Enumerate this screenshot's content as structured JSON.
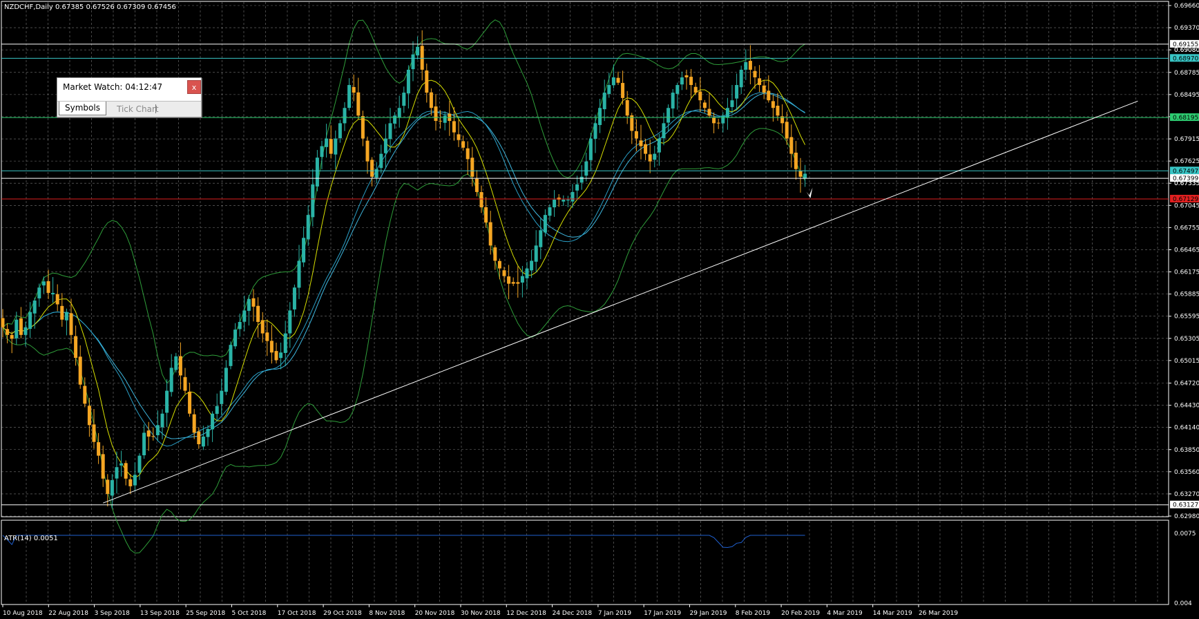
{
  "header": {
    "symbol_info": "NZDCHF,Daily  0.67385 0.67526 0.67309 0.67456"
  },
  "atr": {
    "label": "ATR(14) 0.0051"
  },
  "market_watch": {
    "title": "Market Watch: 04:12:47",
    "close_label": "x",
    "tabs": [
      {
        "label": "Symbols"
      },
      {
        "label": "Tick Chart"
      }
    ]
  },
  "colors": {
    "background": "#000000",
    "grid": "#c8c8c8",
    "axis": "#ffffff",
    "bull": "#2ab3a6",
    "bear": "#f5a623",
    "ma_fast": "#d8e000",
    "ma_slow": "#3fb8e0",
    "bands": "#2f9e3a",
    "atr": "#2060d0",
    "level_cyan": "#39c6c6",
    "level_green": "#2ecc71",
    "level_red": "#e02020",
    "level_white": "#ffffff",
    "trendline": "#ffffff"
  },
  "chart_data": {
    "type": "candlestick",
    "symbol": "NZDCHF",
    "timeframe": "Daily",
    "ylim": [
      0.6298,
      0.6966
    ],
    "price_ticks": [
      "0.69660",
      "0.69370",
      "0.69080",
      "0.68785",
      "0.68495",
      "0.68205",
      "0.67915",
      "0.67625",
      "0.67335",
      "0.67045",
      "0.66755",
      "0.66465",
      "0.66175",
      "0.65885",
      "0.65595",
      "0.65305",
      "0.65015",
      "0.64720",
      "0.64430",
      "0.64140",
      "0.63850",
      "0.63560",
      "0.63270",
      "0.62980"
    ],
    "date_ticks": [
      "10 Aug 2018",
      "22 Aug 2018",
      "3 Sep 2018",
      "13 Sep 2018",
      "25 Sep 2018",
      "5 Oct 2018",
      "17 Oct 2018",
      "29 Oct 2018",
      "8 Nov 2018",
      "20 Nov 2018",
      "30 Nov 2018",
      "12 Dec 2018",
      "24 Dec 2018",
      "7 Jan 2019",
      "17 Jan 2019",
      "29 Jan 2019",
      "8 Feb 2019",
      "20 Feb 2019",
      "4 Mar 2019",
      "14 Mar 2019",
      "26 Mar 2019"
    ],
    "levels": [
      {
        "price": "0.69155",
        "color": "white",
        "label_bg": "#ffffff",
        "label_fg": "#000000"
      },
      {
        "price": "0.68970",
        "color": "cyan",
        "label_bg": "#39c6c6",
        "label_fg": "#000000"
      },
      {
        "price": "0.68195",
        "color": "green",
        "label_bg": "#2ecc71",
        "label_fg": "#000000"
      },
      {
        "price": "0.67497",
        "color": "cyan",
        "label_bg": "#39c6c6",
        "label_fg": "#000000"
      },
      {
        "price": "0.67399",
        "color": "white",
        "label_bg": "#ffffff",
        "label_fg": "#000000"
      },
      {
        "price": "0.67129",
        "color": "red",
        "label_bg": "#e02020",
        "label_fg": "#000000"
      },
      {
        "price": "0.63127",
        "color": "white",
        "label_bg": "#ffffff",
        "label_fg": "#000000"
      }
    ],
    "extra_labels": [
      "0.69080",
      "0.67335"
    ],
    "trendline": [
      {
        "bar": 22,
        "price": 0.6315
      },
      {
        "bar": 249,
        "price": 0.6841
      }
    ],
    "closes": [
      0.6545,
      0.6535,
      0.653,
      0.6555,
      0.6535,
      0.6545,
      0.6565,
      0.658,
      0.6597,
      0.6605,
      0.659,
      0.659,
      0.6575,
      0.6555,
      0.6565,
      0.6535,
      0.6505,
      0.647,
      0.6445,
      0.6417,
      0.6395,
      0.6377,
      0.6347,
      0.6327,
      0.6345,
      0.6362,
      0.6367,
      0.6347,
      0.6337,
      0.6352,
      0.6377,
      0.6407,
      0.6402,
      0.6402,
      0.6417,
      0.6432,
      0.6462,
      0.6492,
      0.6507,
      0.6482,
      0.6462,
      0.6432,
      0.6407,
      0.6392,
      0.6402,
      0.6412,
      0.6432,
      0.6442,
      0.6462,
      0.6492,
      0.6522,
      0.6542,
      0.6552,
      0.6567,
      0.6582,
      0.6572,
      0.6552,
      0.6537,
      0.6527,
      0.6512,
      0.6502,
      0.6512,
      0.6537,
      0.6567,
      0.6597,
      0.6632,
      0.6662,
      0.6692,
      0.6732,
      0.6767,
      0.6782,
      0.6792,
      0.6772,
      0.6792,
      0.6812,
      0.6832,
      0.6862,
      0.6852,
      0.6822,
      0.6792,
      0.6762,
      0.6742,
      0.6752,
      0.6772,
      0.6792,
      0.6812,
      0.6822,
      0.6832,
      0.6852,
      0.6882,
      0.6902,
      0.6912,
      0.6882,
      0.6852,
      0.6832,
      0.6815,
      0.6815,
      0.6822,
      0.6815,
      0.68,
      0.679,
      0.678,
      0.6765,
      0.6742,
      0.6722,
      0.6702,
      0.6682,
      0.6652,
      0.6632,
      0.6622,
      0.6612,
      0.6602,
      0.6602,
      0.6602,
      0.6612,
      0.6622,
      0.6632,
      0.6652,
      0.6672,
      0.6692,
      0.6702,
      0.6712,
      0.6712,
      0.6712,
      0.6712,
      0.6722,
      0.6732,
      0.6742,
      0.6762,
      0.6792,
      0.6812,
      0.6832,
      0.6852,
      0.6862,
      0.6872,
      0.6865,
      0.6845,
      0.6822,
      0.6802,
      0.6792,
      0.6782,
      0.6772,
      0.6762,
      0.6772,
      0.6792,
      0.6812,
      0.6832,
      0.6852,
      0.6862,
      0.6872,
      0.6872,
      0.6862,
      0.6852,
      0.6842,
      0.6832,
      0.6822,
      0.6812,
      0.6812,
      0.6822,
      0.6832,
      0.6842,
      0.6862,
      0.6882,
      0.6892,
      0.6882,
      0.6872,
      0.6862,
      0.6852,
      0.6842,
      0.6832,
      0.6822,
      0.6812,
      0.6792,
      0.6772,
      0.6752,
      0.6742,
      0.6746
    ],
    "atr_ylim": [
      0.004,
      0.0075
    ],
    "atr_ticks": [
      "0.0075",
      "0.004"
    ]
  }
}
